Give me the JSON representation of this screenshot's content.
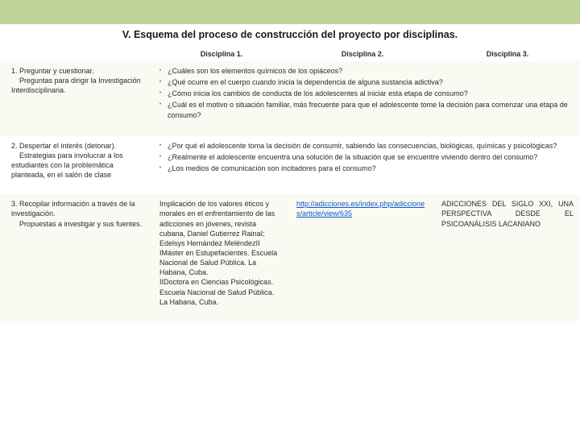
{
  "colors": {
    "banner": "#bfd498",
    "alt_row": "#f9fbf3",
    "link": "#1155cc",
    "text": "#2a2a2a"
  },
  "title": "V. Esquema del proceso de construcción del proyecto por disciplinas.",
  "headers": {
    "col1": "",
    "col2": "Disciplina 1.",
    "col3": "Disciplina 2.",
    "col4": "Disciplina 3."
  },
  "rows": {
    "r1": {
      "label_num": "1.",
      "label_main": "Preguntar y cuestionar.",
      "label_sub": "Preguntas para dirigir la Investigación Interdisciplinaria.",
      "q1": "¿Cuáles son los elementos químicos de los opiáceos?",
      "q2": "¿Qué ocurre en el cuerpo cuando inicia la dependencia de alguna sustancia adictiva?",
      "q3": "¿Cómo inicia los cambios de conducta de los adolescentes al iniciar esta etapa de consumo?",
      "q4": "¿Cuál es el motivo o situación familiar, más frecuente para que el adolescente tome la decisión para comenzar una etapa de consumo?"
    },
    "r2": {
      "label_main": "2. Despertar el interés (detonar).",
      "label_sub": "Estrategias para involucrar a los estudiantes con la problemática planteada, en el salón de clase",
      "q1": "¿Por qué el adolescente toma la decisión de consumir, sabiendo las consecuencias, biológicas, químicas y psicológicas?",
      "q2": "¿Realmente el adolescente encuentra una solución de la situación que se encuentre viviendo dentro del consumo?",
      "q3": "¿Los medios de comunicación son incitadores para el consumo?"
    },
    "r3": {
      "label_main": "3. Recopilar información a través de la investigación.",
      "label_sub": "Propuestas a investigar y sus fuentes.",
      "c2": "Implicación de los valores éticos y morales en el enfrentamiento de las adicciones en jóvenes, revista cubana, Daniel Gutierrez RainaI; Edelsys Hernández MeléndezII\nIMáster en Estupefacientes. Escuela Nacional de Salud Pública. La Habana, Cuba.\nIIDoctora en Ciencias Psicológicas. Escuela Nacional de Salud Pública. La Habana, Cuba.",
      "c3_link": "http://adicciones.es/index.php/adicciones/article/view/635",
      "c4": "ADICCIONES DEL SIGLO XXI, UNA PERSPECTIVA DESDE EL PSICOANÁLISIS LACANIANO"
    }
  }
}
